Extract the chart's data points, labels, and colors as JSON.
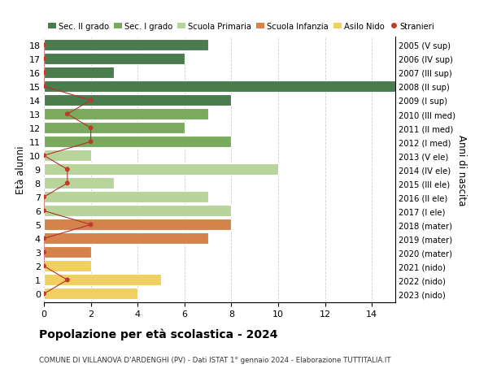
{
  "ages": [
    18,
    17,
    16,
    15,
    14,
    13,
    12,
    11,
    10,
    9,
    8,
    7,
    6,
    5,
    4,
    3,
    2,
    1,
    0
  ],
  "right_labels": [
    "2005 (V sup)",
    "2006 (IV sup)",
    "2007 (III sup)",
    "2008 (II sup)",
    "2009 (I sup)",
    "2010 (III med)",
    "2011 (II med)",
    "2012 (I med)",
    "2013 (V ele)",
    "2014 (IV ele)",
    "2015 (III ele)",
    "2016 (II ele)",
    "2017 (I ele)",
    "2018 (mater)",
    "2019 (mater)",
    "2020 (mater)",
    "2021 (nido)",
    "2022 (nido)",
    "2023 (nido)"
  ],
  "bar_values": [
    7,
    6,
    3,
    15,
    8,
    7,
    6,
    8,
    2,
    10,
    3,
    7,
    8,
    8,
    7,
    2,
    2,
    5,
    4
  ],
  "bar_colors": [
    "#4a7c4e",
    "#4a7c4e",
    "#4a7c4e",
    "#4a7c4e",
    "#4a7c4e",
    "#7aaa5e",
    "#7aaa5e",
    "#7aaa5e",
    "#b8d49a",
    "#b8d49a",
    "#b8d49a",
    "#b8d49a",
    "#b8d49a",
    "#d4844a",
    "#d4844a",
    "#d4844a",
    "#f0d060",
    "#f0d060",
    "#f0d060"
  ],
  "stranieri_x": [
    0,
    0,
    0,
    0,
    2,
    1,
    2,
    2,
    0,
    1,
    1,
    0,
    0,
    2,
    0,
    0,
    0,
    1,
    0
  ],
  "legend_labels": [
    "Sec. II grado",
    "Sec. I grado",
    "Scuola Primaria",
    "Scuola Infanzia",
    "Asilo Nido",
    "Stranieri"
  ],
  "legend_colors": [
    "#4a7c4e",
    "#7aaa5e",
    "#b8d49a",
    "#d4844a",
    "#f0d060",
    "#c0392b"
  ],
  "ylabel_left": "Età alunni",
  "ylabel_right": "Anni di nascita",
  "title": "Popolazione per età scolastica - 2024",
  "subtitle": "COMUNE DI VILLANOVA D'ARDENGHI (PV) - Dati ISTAT 1° gennaio 2024 - Elaborazione TUTTITALIA.IT",
  "xlim": [
    0,
    15
  ],
  "bg_color": "#ffffff",
  "grid_color": "#cccccc",
  "bar_height": 0.82,
  "stranieri_color": "#c0392b",
  "stranieri_line_color": "#b03030"
}
